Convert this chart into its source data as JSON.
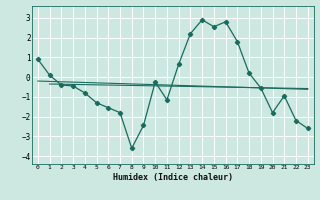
{
  "xlabel": "Humidex (Indice chaleur)",
  "bg_color": "#cce8e0",
  "grid_color": "#ffffff",
  "line_color": "#1a6b5e",
  "xlim": [
    -0.5,
    23.5
  ],
  "ylim": [
    -4.4,
    3.6
  ],
  "xticks": [
    0,
    1,
    2,
    3,
    4,
    5,
    6,
    7,
    8,
    9,
    10,
    11,
    12,
    13,
    14,
    15,
    16,
    17,
    18,
    19,
    20,
    21,
    22,
    23
  ],
  "yticks": [
    -4,
    -3,
    -2,
    -1,
    0,
    1,
    2,
    3
  ],
  "curve1_x": [
    0,
    1,
    2,
    3,
    4,
    5,
    6,
    7,
    8,
    9,
    10,
    11,
    12,
    13,
    14,
    15,
    16,
    17,
    18,
    19,
    20,
    21,
    22,
    23
  ],
  "curve1_y": [
    0.9,
    0.1,
    -0.4,
    -0.45,
    -0.8,
    -1.3,
    -1.55,
    -1.8,
    -3.6,
    -2.45,
    -0.25,
    -1.15,
    0.65,
    2.2,
    2.9,
    2.55,
    2.8,
    1.8,
    0.2,
    -0.55,
    -1.8,
    -0.95,
    -2.2,
    -2.6
  ],
  "trend1_x": [
    0,
    23
  ],
  "trend1_y": [
    -0.2,
    -0.62
  ],
  "trend2_x": [
    1,
    23
  ],
  "trend2_y": [
    -0.35,
    -0.58
  ]
}
